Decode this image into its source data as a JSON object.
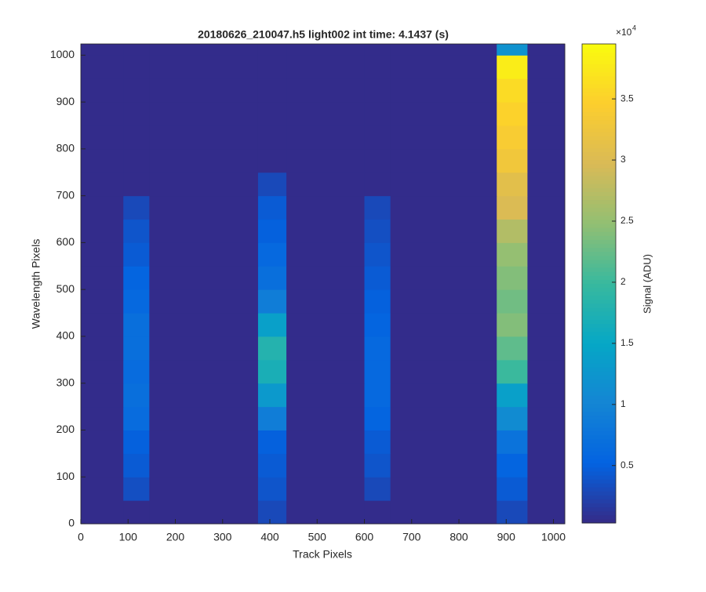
{
  "chart_data": {
    "type": "heatmap",
    "title": "20180626_210047.h5  light002   int time: 4.1437 (s)",
    "xlabel": "Track Pixels",
    "ylabel": "Wavelength Pixels",
    "x_edges": [
      0,
      90,
      145,
      375,
      435,
      600,
      655,
      880,
      945,
      1024
    ],
    "y_edges": [
      0,
      50,
      100,
      150,
      200,
      250,
      300,
      350,
      400,
      450,
      500,
      550,
      600,
      650,
      700,
      750,
      800,
      850,
      900,
      950,
      1000,
      1024
    ],
    "z": [
      [
        500,
        500,
        500,
        3000,
        500,
        500,
        500,
        3000,
        500
      ],
      [
        500,
        3500,
        500,
        4000,
        500,
        3000,
        500,
        4500,
        500
      ],
      [
        500,
        4500,
        500,
        4500,
        500,
        4000,
        500,
        5500,
        500
      ],
      [
        500,
        5000,
        500,
        5000,
        500,
        4500,
        500,
        7500,
        500
      ],
      [
        500,
        6500,
        500,
        9000,
        500,
        5500,
        500,
        11000,
        500
      ],
      [
        500,
        7000,
        500,
        13000,
        500,
        6000,
        500,
        14000,
        500
      ],
      [
        500,
        6500,
        500,
        17000,
        500,
        6000,
        500,
        20000,
        500
      ],
      [
        500,
        7000,
        500,
        18000,
        500,
        6000,
        500,
        22000,
        500
      ],
      [
        500,
        7000,
        500,
        14000,
        500,
        5500,
        500,
        24000,
        500
      ],
      [
        500,
        6000,
        500,
        9000,
        500,
        5000,
        500,
        23000,
        500
      ],
      [
        500,
        5500,
        500,
        7000,
        500,
        4500,
        500,
        24000,
        500
      ],
      [
        500,
        4500,
        500,
        6000,
        500,
        4000,
        500,
        25000,
        500
      ],
      [
        500,
        4000,
        500,
        5000,
        500,
        3500,
        500,
        27000,
        500
      ],
      [
        500,
        3000,
        500,
        4500,
        500,
        3000,
        500,
        30000,
        500
      ],
      [
        500,
        500,
        500,
        3000,
        500,
        500,
        500,
        31000,
        500
      ],
      [
        500,
        500,
        500,
        500,
        500,
        500,
        500,
        33000,
        500
      ],
      [
        500,
        500,
        500,
        500,
        500,
        500,
        500,
        34000,
        500
      ],
      [
        500,
        500,
        500,
        500,
        500,
        500,
        500,
        35000,
        500
      ],
      [
        500,
        500,
        500,
        500,
        500,
        500,
        500,
        36000,
        500
      ],
      [
        500,
        500,
        500,
        500,
        500,
        500,
        500,
        38000,
        500
      ],
      [
        500,
        500,
        500,
        500,
        500,
        500,
        500,
        12000,
        500
      ]
    ],
    "xlim": [
      0,
      1024
    ],
    "xticks": [
      0,
      100,
      200,
      300,
      400,
      500,
      600,
      700,
      800,
      900,
      1000
    ],
    "ylim": [
      0,
      1024
    ],
    "yticks": [
      0,
      100,
      200,
      300,
      400,
      500,
      600,
      700,
      800,
      900,
      1000
    ],
    "colormap": [
      "#352a87",
      "#0363e1",
      "#1485d4",
      "#06a7c6",
      "#38b99e",
      "#92bf73",
      "#d9ba56",
      "#fcce2e",
      "#f9fb0e"
    ],
    "clim": [
      300,
      39500
    ],
    "colorbar_label": "Signal (ADU)",
    "colorbar_multiplier": {
      "base": "×10",
      "exponent": "4"
    },
    "colorbar_ticks": [
      {
        "value": 5000,
        "label": "0.5"
      },
      {
        "value": 10000,
        "label": "1"
      },
      {
        "value": 15000,
        "label": "1.5"
      },
      {
        "value": 20000,
        "label": "2"
      },
      {
        "value": 25000,
        "label": "2.5"
      },
      {
        "value": 30000,
        "label": "3"
      },
      {
        "value": 35000,
        "label": "3.5"
      }
    ]
  }
}
